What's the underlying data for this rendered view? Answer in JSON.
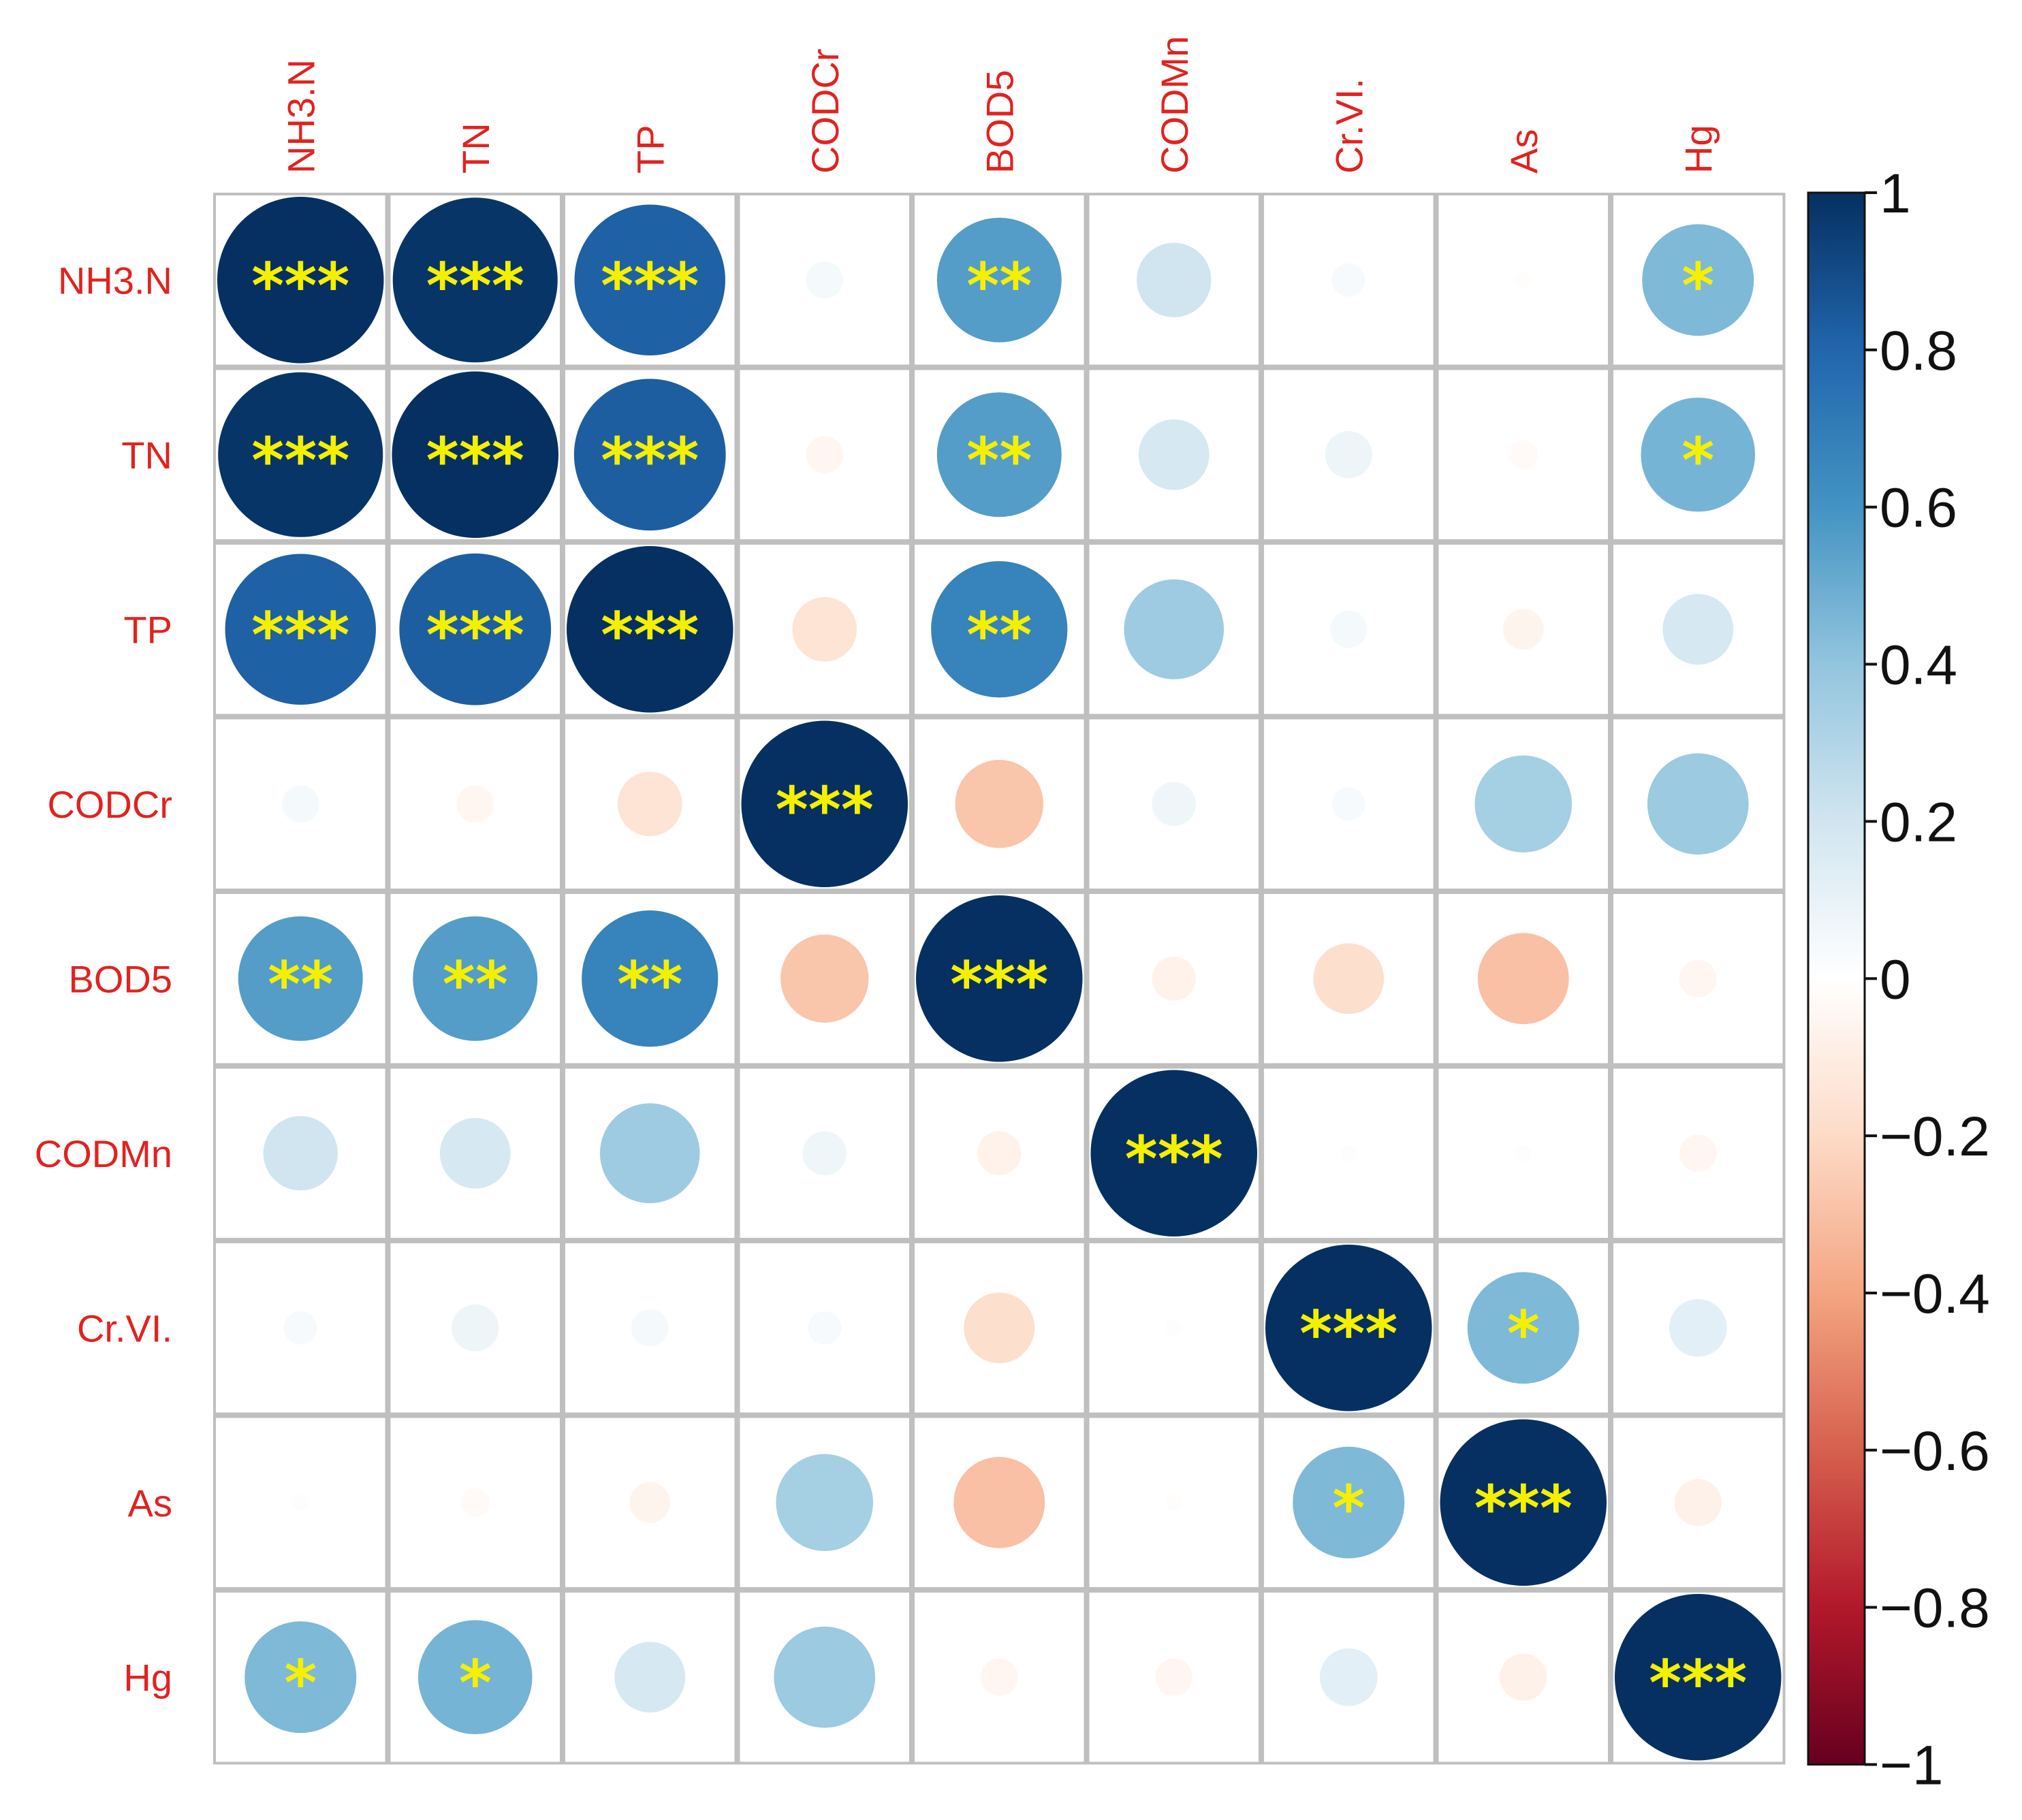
{
  "chart_data": {
    "type": "heatmap",
    "variables": [
      "NH3.N",
      "TN",
      "TP",
      "CODCr",
      "BOD5",
      "CODMn",
      "Cr.VI.",
      "As",
      "Hg"
    ],
    "matrix": [
      [
        1.0,
        0.98,
        0.82,
        0.05,
        0.56,
        0.2,
        0.04,
        -0.01,
        0.45
      ],
      [
        0.98,
        1.0,
        0.83,
        -0.05,
        0.56,
        0.18,
        0.08,
        -0.03,
        0.47
      ],
      [
        0.82,
        0.83,
        1.0,
        -0.15,
        0.67,
        0.36,
        0.05,
        -0.06,
        0.18
      ],
      [
        0.05,
        -0.05,
        -0.15,
        1.0,
        -0.28,
        0.07,
        0.04,
        0.34,
        0.37
      ],
      [
        0.56,
        0.56,
        0.67,
        -0.28,
        1.0,
        -0.07,
        -0.18,
        -0.3,
        -0.05
      ],
      [
        0.2,
        0.18,
        0.36,
        0.07,
        -0.07,
        1.0,
        -0.01,
        -0.01,
        -0.05
      ],
      [
        0.04,
        0.08,
        0.05,
        0.04,
        -0.18,
        -0.01,
        1.0,
        0.45,
        0.12
      ],
      [
        -0.01,
        -0.03,
        -0.06,
        0.34,
        -0.3,
        -0.01,
        0.45,
        1.0,
        -0.08
      ],
      [
        0.45,
        0.47,
        0.18,
        0.37,
        -0.05,
        -0.05,
        0.12,
        -0.08,
        1.0
      ]
    ],
    "significance": [
      [
        "***",
        "***",
        "***",
        "",
        "**",
        "",
        "",
        "",
        "*"
      ],
      [
        "***",
        "***",
        "***",
        "",
        "**",
        "",
        "",
        "",
        "*"
      ],
      [
        "***",
        "***",
        "***",
        "",
        "**",
        "",
        "",
        "",
        ""
      ],
      [
        "",
        "",
        "",
        "***",
        "",
        "",
        "",
        "",
        ""
      ],
      [
        "**",
        "**",
        "**",
        "",
        "***",
        "",
        "",
        "",
        ""
      ],
      [
        "",
        "",
        "",
        "",
        "",
        "***",
        "",
        "",
        ""
      ],
      [
        "",
        "",
        "",
        "",
        "",
        "",
        "***",
        "*",
        ""
      ],
      [
        "",
        "",
        "",
        "",
        "",
        "",
        "*",
        "***",
        ""
      ],
      [
        "*",
        "*",
        "",
        "",
        "",
        "",
        "",
        "",
        "***"
      ]
    ],
    "colorbar": {
      "range": [
        -1,
        1
      ],
      "ticks": [
        "1",
        "0.8",
        "0.6",
        "0.4",
        "0.2",
        "0",
        "−0.2",
        "−0.4",
        "−0.6",
        "−0.8",
        "−1"
      ],
      "tick_values": [
        1,
        0.8,
        0.6,
        0.4,
        0.2,
        0,
        -0.2,
        -0.4,
        -0.6,
        -0.8,
        -1
      ]
    },
    "colors": {
      "label": "#e0231f",
      "star": "#f5f000",
      "grid": "#bfbfbf",
      "scale": [
        "#67001f",
        "#b2182b",
        "#d6604d",
        "#f4a582",
        "#fddbc7",
        "#ffffff",
        "#d1e5f0",
        "#92c5de",
        "#4393c3",
        "#2166ac",
        "#053061"
      ]
    }
  }
}
